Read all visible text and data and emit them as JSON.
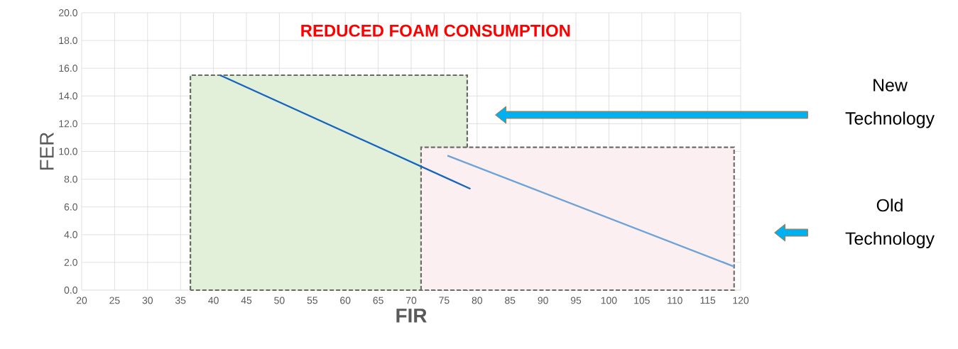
{
  "chart_data": {
    "type": "line",
    "title": "REDUCED FOAM CONSUMPTION",
    "xlabel": "FIR",
    "ylabel": "FER",
    "xlim": [
      20,
      120
    ],
    "ylim": [
      0,
      20
    ],
    "xticks": [
      20,
      25,
      30,
      35,
      40,
      45,
      50,
      55,
      60,
      65,
      70,
      75,
      80,
      85,
      90,
      95,
      100,
      105,
      110,
      115,
      120
    ],
    "yticks": [
      {
        "value": 0,
        "label": "0.0"
      },
      {
        "value": 2,
        "label": "2.0"
      },
      {
        "value": 4,
        "label": "4.0"
      },
      {
        "value": 6,
        "label": "6.0"
      },
      {
        "value": 8,
        "label": "8.0"
      },
      {
        "value": 10,
        "label": "10.0"
      },
      {
        "value": 12,
        "label": "12.0"
      },
      {
        "value": 14,
        "label": "14.0"
      },
      {
        "value": 16,
        "label": "16.0"
      },
      {
        "value": 18,
        "label": "18.0"
      },
      {
        "value": 20,
        "label": "20.0"
      }
    ],
    "grid": true,
    "series": [
      {
        "type": "area",
        "line_style": "dashed",
        "color": "#e2efd9",
        "x": [
          36.5,
          78.5
        ],
        "values": [
          15.5,
          15.5
        ]
      },
      {
        "type": "area",
        "line_style": "dashed",
        "color": "#fbeff1",
        "x": [
          71.5,
          119
        ],
        "values": [
          10.3,
          10.3
        ]
      },
      {
        "color": "#1565c0",
        "x": [
          41,
          79
        ],
        "values": [
          15.5,
          7.3
        ]
      },
      {
        "color": "#6fa3d8",
        "x": [
          75.5,
          119
        ],
        "values": [
          9.7,
          1.7
        ]
      }
    ],
    "annotations": [
      "New Technology",
      "Old Technology"
    ]
  }
}
